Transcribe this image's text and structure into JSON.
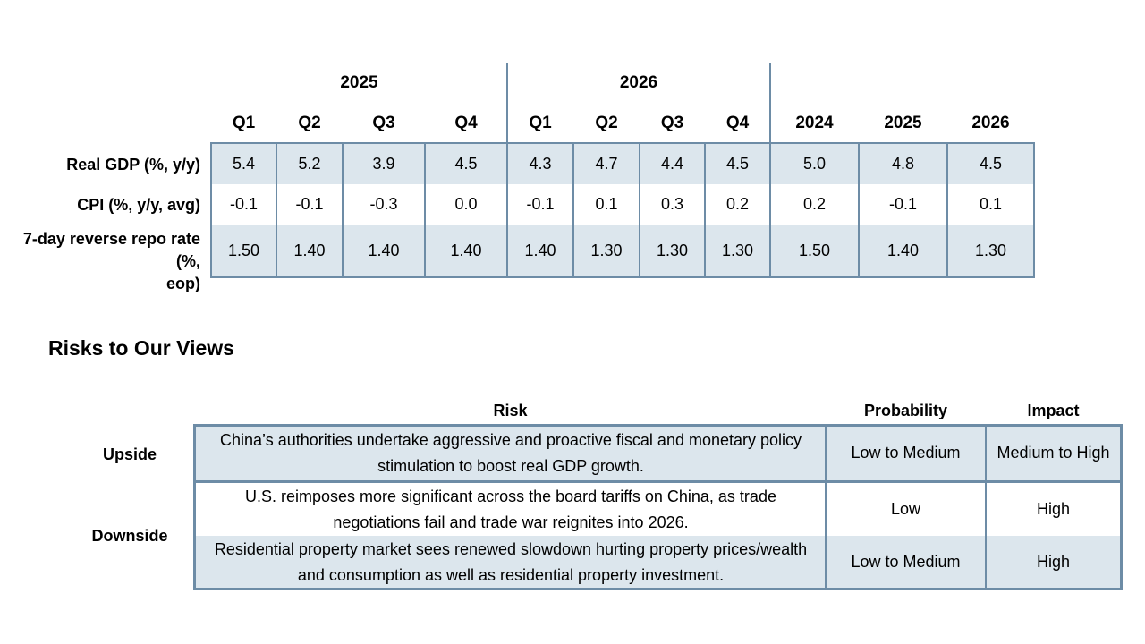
{
  "forecast": {
    "year_groups": [
      "2025",
      "2026"
    ],
    "columns": [
      "Q1",
      "Q2",
      "Q3",
      "Q4",
      "Q1",
      "Q2",
      "Q3",
      "Q4",
      "2024",
      "2025",
      "2026"
    ],
    "rows": [
      {
        "label": "Real GDP (%, y/y)",
        "values": [
          "5.4",
          "5.2",
          "3.9",
          "4.5",
          "4.3",
          "4.7",
          "4.4",
          "4.5",
          "5.0",
          "4.8",
          "4.5"
        ]
      },
      {
        "label": "CPI (%, y/y, avg)",
        "values": [
          "-0.1",
          "-0.1",
          "-0.3",
          "0.0",
          "-0.1",
          "0.1",
          "0.3",
          "0.2",
          "0.2",
          "-0.1",
          "0.1"
        ]
      },
      {
        "label_line1": "7-day reverse repo rate (%,",
        "label_line2": "eop)",
        "values": [
          "1.50",
          "1.40",
          "1.40",
          "1.40",
          "1.40",
          "1.30",
          "1.30",
          "1.30",
          "1.50",
          "1.40",
          "1.30"
        ]
      }
    ]
  },
  "risks": {
    "title": "Risks to Our Views",
    "headers": {
      "risk": "Risk",
      "probability": "Probability",
      "impact": "Impact"
    },
    "upside_label": "Upside",
    "downside_label": "Downside",
    "items": [
      {
        "risk": "China’s authorities undertake aggressive and proactive fiscal and monetary policy stimulation to boost real GDP growth.",
        "probability": "Low to Medium",
        "impact": "Medium to High"
      },
      {
        "risk": "U.S. reimposes more significant across the board tariffs on China, as trade negotiations fail and trade war reignites into 2026.",
        "probability": "Low",
        "impact": "High"
      },
      {
        "risk": "Residential property market sees renewed slowdown hurting property prices/wealth and consumption as well as residential property investment.",
        "probability": "Low to Medium",
        "impact": "High"
      }
    ]
  },
  "colors": {
    "shade": "#dce6ed",
    "border": "#6d8ca6"
  }
}
